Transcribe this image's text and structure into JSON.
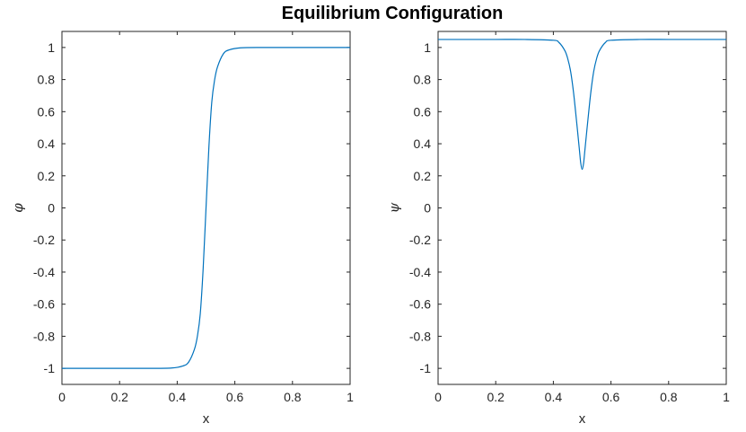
{
  "figure": {
    "title": "Equilibrium Configuration"
  },
  "chart_data": [
    {
      "type": "line",
      "xlabel": "x",
      "ylabel": "φ",
      "xlim": [
        0,
        1
      ],
      "ylim": [
        -1.1,
        1.1
      ],
      "xticks": [
        "0",
        "0.2",
        "0.4",
        "0.6",
        "0.8",
        "1"
      ],
      "yticks": [
        "-1",
        "-0.8",
        "-0.6",
        "-0.4",
        "-0.2",
        "0",
        "0.2",
        "0.4",
        "0.6",
        "0.8",
        "1"
      ],
      "grid": false,
      "line_color": "#0072BD",
      "series": [
        {
          "x": [
            0,
            0.1,
            0.2,
            0.3,
            0.38,
            0.42,
            0.44,
            0.46,
            0.47,
            0.48,
            0.49,
            0.5,
            0.51,
            0.52,
            0.53,
            0.54,
            0.56,
            0.58,
            0.62,
            0.7,
            0.8,
            0.9,
            1
          ],
          "values": [
            -1,
            -1,
            -1,
            -1,
            -0.998,
            -0.985,
            -0.96,
            -0.88,
            -0.8,
            -0.66,
            -0.38,
            0,
            0.38,
            0.66,
            0.8,
            0.88,
            0.96,
            0.985,
            0.998,
            1,
            1,
            1,
            1
          ]
        }
      ]
    },
    {
      "type": "line",
      "xlabel": "x",
      "ylabel": "ψ",
      "xlim": [
        0,
        1
      ],
      "ylim": [
        -1.1,
        1.1
      ],
      "xticks": [
        "0",
        "0.2",
        "0.4",
        "0.6",
        "0.8",
        "1"
      ],
      "yticks": [
        "-1",
        "-0.8",
        "-0.6",
        "-0.4",
        "-0.2",
        "0",
        "0.2",
        "0.4",
        "0.6",
        "0.8",
        "1"
      ],
      "grid": false,
      "line_color": "#0072BD",
      "series": [
        {
          "x": [
            0,
            0.1,
            0.2,
            0.3,
            0.4,
            0.42,
            0.44,
            0.45,
            0.46,
            0.47,
            0.48,
            0.49,
            0.495,
            0.5,
            0.505,
            0.51,
            0.52,
            0.53,
            0.54,
            0.55,
            0.56,
            0.58,
            0.6,
            0.7,
            0.8,
            0.9,
            1
          ],
          "values": [
            1.05,
            1.05,
            1.05,
            1.05,
            1.045,
            1.03,
            0.98,
            0.93,
            0.85,
            0.72,
            0.55,
            0.37,
            0.28,
            0.24,
            0.28,
            0.37,
            0.55,
            0.72,
            0.85,
            0.93,
            0.98,
            1.03,
            1.045,
            1.05,
            1.05,
            1.05,
            1.05
          ]
        }
      ]
    }
  ]
}
